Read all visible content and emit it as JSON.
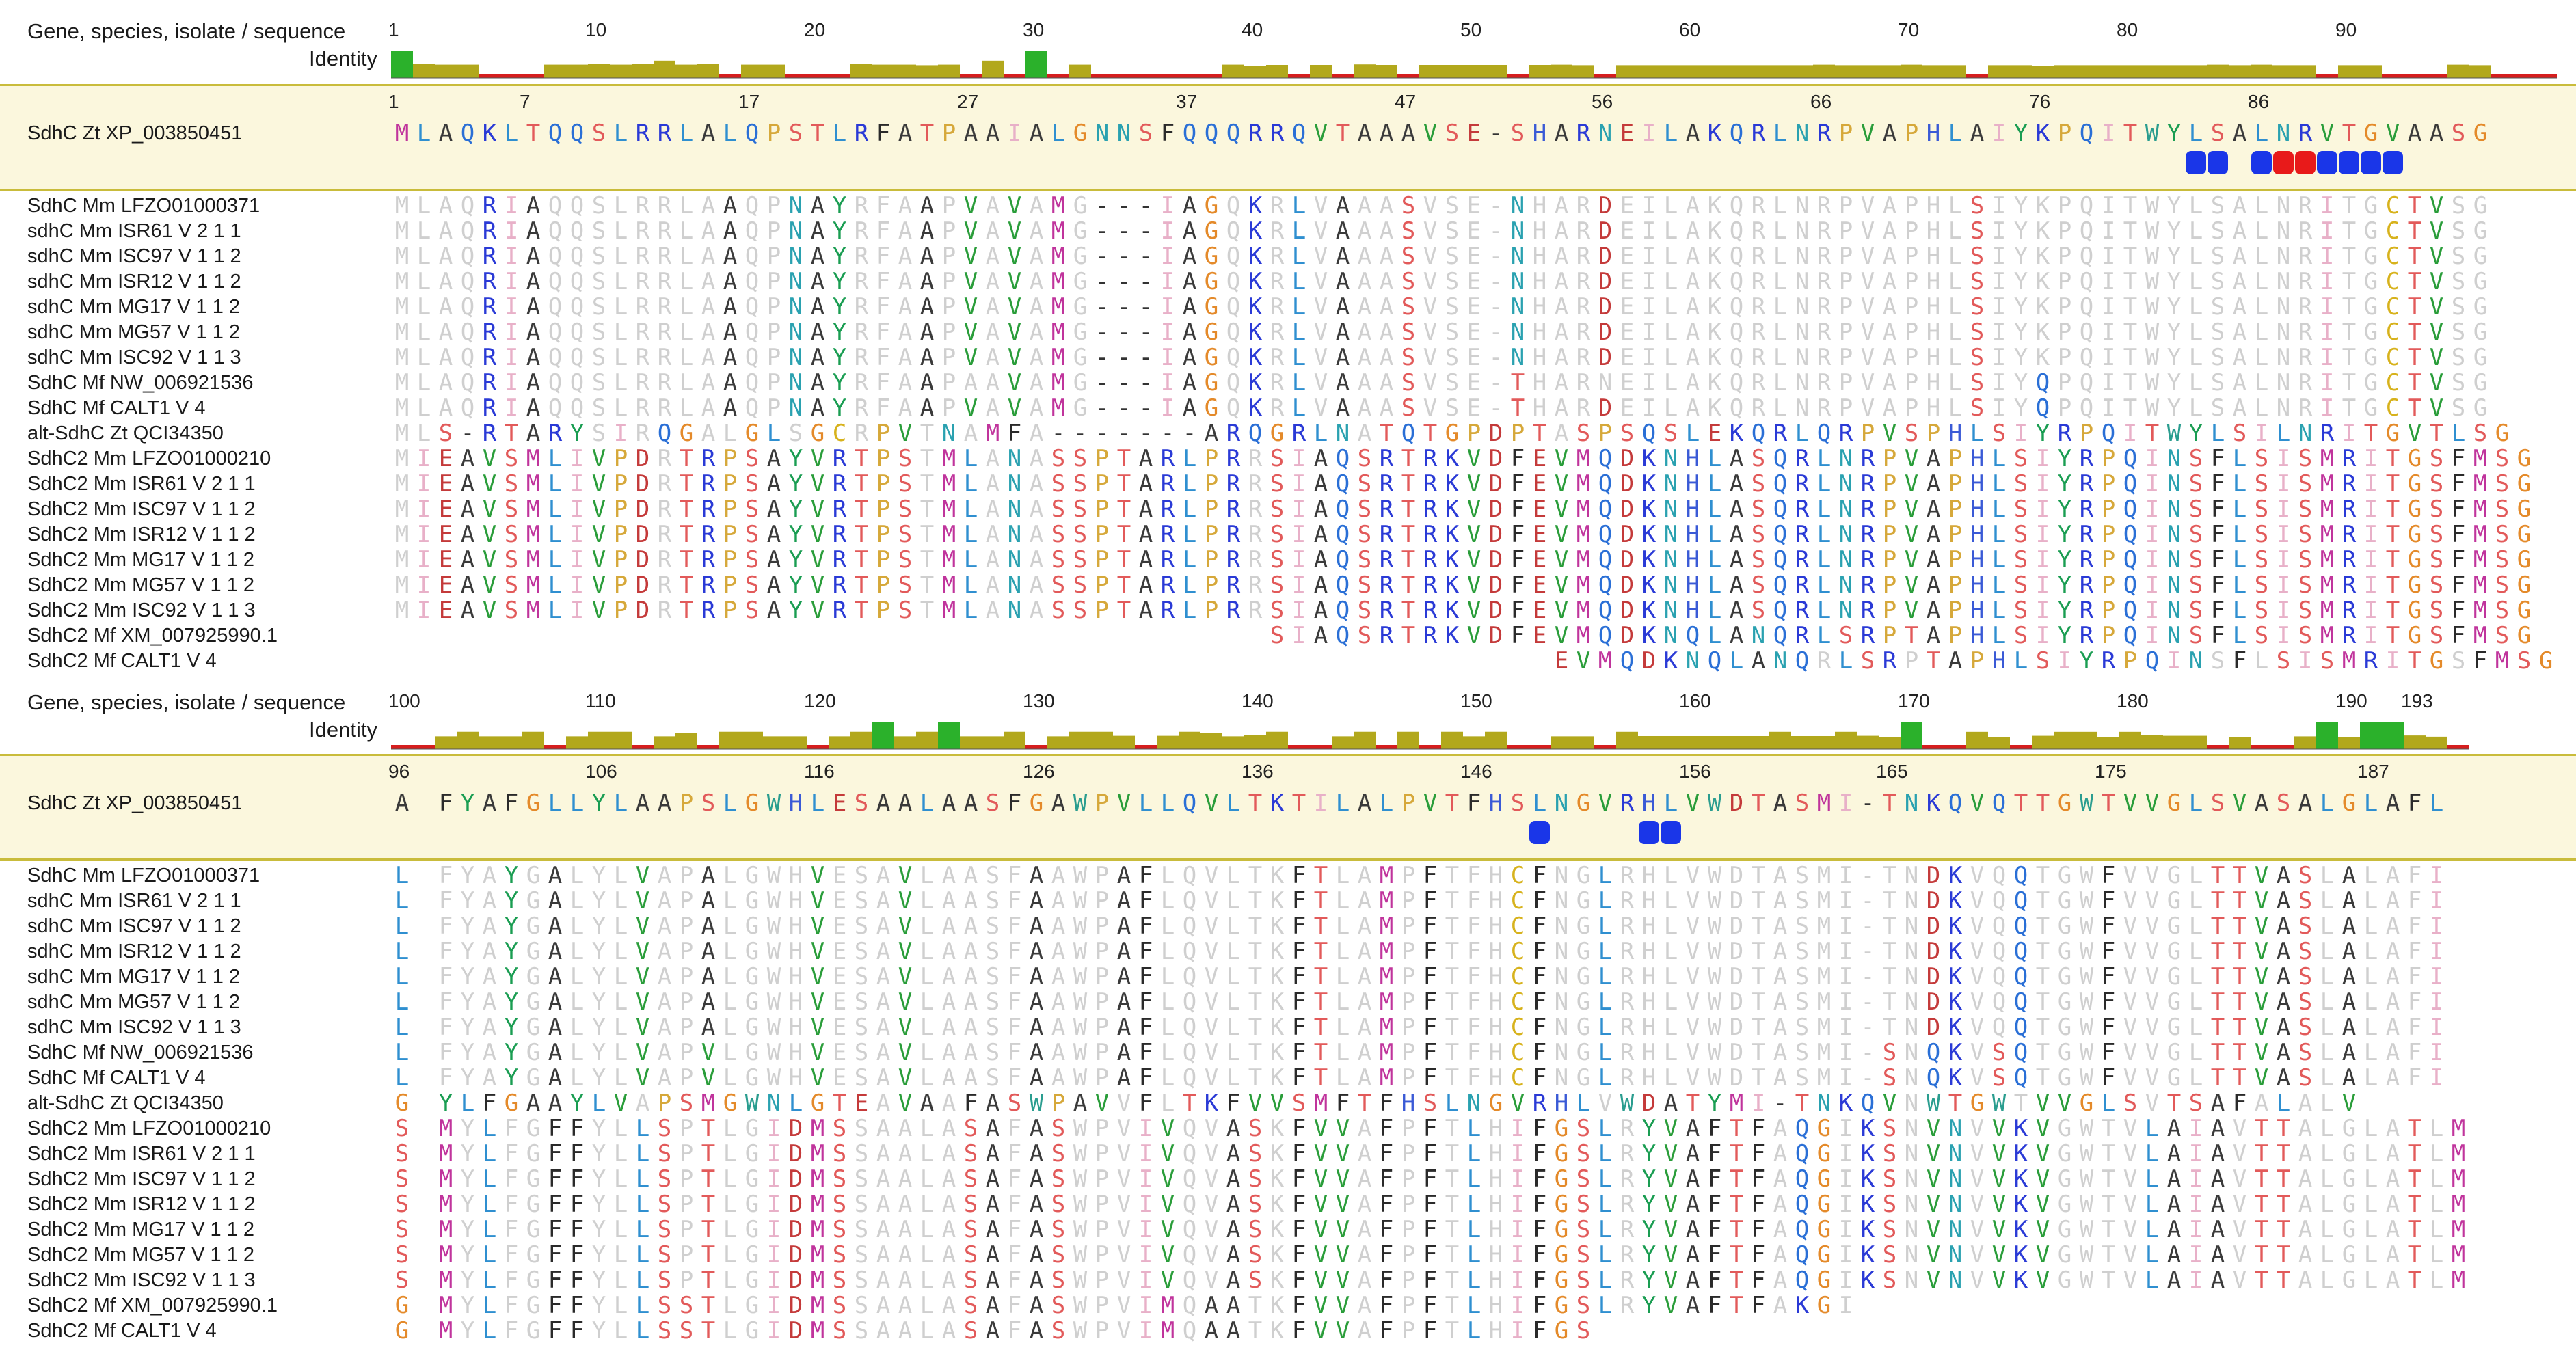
{
  "header_label_line1": "Gene, species, isolate / sequence",
  "header_label_line2": "Identity",
  "colors": {
    "identity_full": "#2bb12b",
    "identity_partial": "#b2a81c",
    "identity_low": "#d61e1e",
    "marker_blue": "#1a36e8",
    "marker_red": "#e81a1a",
    "ref_band": "#fbf7dd"
  },
  "blocks": [
    {
      "ruler_ticks": [
        "1",
        "10",
        "20",
        "30",
        "40",
        "50",
        "60",
        "70",
        "80",
        "90"
      ],
      "ref_ticks": [
        "1",
        "7",
        "17",
        "27",
        "37",
        "47",
        "56",
        "66",
        "76",
        "86"
      ],
      "reference": {
        "name": "SdhC Zt XP_003850451",
        "seq": "MLAQKLTQQSLRRLALQPSTLRFATPAAIALGNNSFQQQRRQVTAAAVSE-SHARNEILAKQRLNRPVAPHLAIYKPQITWYLSALNRVTGVAASG"
      },
      "rows": [
        {
          "name": "SdhC Mm LFZO01000371",
          "seq": "MLAQRIAQQSLRRLAAQPNAYRFAAPVAVAMG---IAGQKRLVAAASVSE-NHARDEILAKQRLNRPVAPHLSIYKPQITWYLSALNRITGCTVSG"
        },
        {
          "name": "sdhC Mm ISR61 V 2 1 1",
          "seq": "MLAQRIAQQSLRRLAAQPNAYRFAAPVAVAMG---IAGQKRLVAAASVSE-NHARDEILAKQRLNRPVAPHLSIYKPQITWYLSALNRITGCTVSG"
        },
        {
          "name": "sdhC Mm ISC97 V 1 1 2",
          "seq": "MLAQRIAQQSLRRLAAQPNAYRFAAPVAVAMG---IAGQKRLVAAASVSE-NHARDEILAKQRLNRPVAPHLSIYKPQITWYLSALNRITGCTVSG"
        },
        {
          "name": "sdhC Mm ISR12 V 1 1 2",
          "seq": "MLAQRIAQQSLRRLAAQPNAYRFAAPVAVAMG---IAGQKRLVAAASVSE-NHARDEILAKQRLNRPVAPHLSIYKPQITWYLSALNRITGCTVSG"
        },
        {
          "name": "sdhC Mm MG17 V 1 1 2",
          "seq": "MLAQRIAQQSLRRLAAQPNAYRFAAPVAVAMG---IAGQKRLVAAASVSE-NHARDEILAKQRLNRPVAPHLSIYKPQITWYLSALNRITGCTVSG"
        },
        {
          "name": "sdhC Mm MG57 V 1 1 2",
          "seq": "MLAQRIAQQSLRRLAAQPNAYRFAAPVAVAMG---IAGQKRLVAAASVSE-NHARDEILAKQRLNRPVAPHLSIYKPQITWYLSALNRITGCTVSG"
        },
        {
          "name": "sdhC Mm ISC92 V 1 1 3",
          "seq": "MLAQRIAQQSLRRLAAQPNAYRFAAPVAVAMG---IAGQKRLVAAASVSE-NHARDEILAKQRLNRPVAPHLSIYKPQITWYLSALNRITGCTVSG"
        },
        {
          "name": "SdhC Mf NW_006921536",
          "seq": "MLAQRIAQQSLRRLAAQPNAYRFAAPAAVAMG---IAGQKRLVAAASVSE-THARNEILAKQRLNRPVAPHLSIYQPQITWYLSALNRITGCTVSG"
        },
        {
          "name": "SdhC Mf CALT1 V 4",
          "seq": "MLAQRIAQQSLRRLAAQPNAYRFAAPVAVAMG---IAGQKRLVAAASVSE-THARDEILAKQRLNRPVAPHLSIYQPQITWYLSALNRITGCTVSG"
        },
        {
          "name": "alt-SdhC Zt QCI34350",
          "seq": "MLS-RTARYSIRQGALGLSGCRPVTNAMFA-------ARQGRLNATQTGPDPTASPSQSLEKQRLQRPVSPHLSIYRPQITWYLSILNRITGVTLSG"
        },
        {
          "name": "SdhC2 Mm LFZO01000210",
          "seq": "MIEAVSMLIVPDRTRPSAYVRTPSTMLANASSPTARLPRRSIAQSRTRKVDFEVMQDKNHLASQRLNRPVAPHLSIYRPQINSFLSISMRITGSFMSG"
        },
        {
          "name": "SdhC2 Mm ISR61 V 2 1 1",
          "seq": "MIEAVSMLIVPDRTRPSAYVRTPSTMLANASSPTARLPRRSIAQSRTRKVDFEVMQDKNHLASQRLNRPVAPHLSIYRPQINSFLSISMRITGSFMSG"
        },
        {
          "name": "SdhC2 Mm ISC97 V 1 1 2",
          "seq": "MIEAVSMLIVPDRTRPSAYVRTPSTMLANASSPTARLPRRSIAQSRTRKVDFEVMQDKNHLASQRLNRPVAPHLSIYRPQINSFLSISMRITGSFMSG"
        },
        {
          "name": "SdhC2 Mm ISR12 V 1 1 2",
          "seq": "MIEAVSMLIVPDRTRPSAYVRTPSTMLANASSPTARLPRRSIAQSRTRKVDFEVMQDKNHLASQRLNRPVAPHLSIYRPQINSFLSISMRITGSFMSG"
        },
        {
          "name": "SdhC2 Mm MG17 V 1 1 2",
          "seq": "MIEAVSMLIVPDRTRPSAYVRTPSTMLANASSPTARLPRRSIAQSRTRKVDFEVMQDKNHLASQRLNRPVAPHLSIYRPQINSFLSISMRITGSFMSG"
        },
        {
          "name": "SdhC2 Mm MG57 V 1 1 2",
          "seq": "MIEAVSMLIVPDRTRPSAYVRTPSTMLANASSPTARLPRRSIAQSRTRKVDFEVMQDKNHLASQRLNRPVAPHLSIYRPQINSFLSISMRITGSFMSG"
        },
        {
          "name": "SdhC2 Mm ISC92 V 1 1 3",
          "seq": "MIEAVSMLIVPDRTRPSAYVRTPSTMLANASSPTARLPRRSIAQSRTRKVDFEVMQDKNHLASQRLNRPVAPHLSIYRPQINSFLSISMRITGSFMSG"
        },
        {
          "name": "SdhC2 Mf XM_007925990.1",
          "seq": "                                        SIAQSRTRKVDFEVMQDKNQLANQRLSRPTAPHLSIYRPQINSFLSISMRITGSFMSG"
        },
        {
          "name": "SdhC2 Mf CALT1 V 4",
          "seq": "                                                     EVMQDKNQLANQRLSRPTAPHLSIYRPQINSFLSISMRITGSFMSG"
        }
      ]
    },
    {
      "ruler_ticks": [
        "100",
        "110",
        "120",
        "130",
        "140",
        "150",
        "160",
        "170",
        "180",
        "190",
        "193"
      ],
      "ref_ticks": [
        "96",
        "106",
        "116",
        "126",
        "136",
        "146",
        "156",
        "165",
        "175",
        "187"
      ],
      "reference": {
        "name": "SdhC Zt XP_003850451",
        "seq": "A FYAFGLLYLAAPSLGWHLESAALAASFGAWPVLLQVLTKTILALPVTFHSLNGVRHLVWDTASMI-TNKQVQTTGWTVVGLSVASALGLAFL"
      },
      "rows": [
        {
          "name": "SdhC Mm LFZO01000371",
          "seq": "L FYAYGALYLVAPALGWHVESAVLAASFAAWPAFLQVLTKFTLAMPFTFHCFNGLRHLVWDTASMI-TNDKVQQTGWFVVGLTTVASLALAFI"
        },
        {
          "name": "sdhC Mm ISR61 V 2 1 1",
          "seq": "L FYAYGALYLVAPALGWHVESAVLAASFAAWPAFLQVLTKFTLAMPFTFHCFNGLRHLVWDTASMI-TNDKVQQTGWFVVGLTTVASLALAFI"
        },
        {
          "name": "sdhC Mm ISC97 V 1 1 2",
          "seq": "L FYAYGALYLVAPALGWHVESAVLAASFAAWPAFLQVLTKFTLAMPFTFHCFNGLRHLVWDTASMI-TNDKVQQTGWFVVGLTTVASLALAFI"
        },
        {
          "name": "sdhC Mm ISR12 V 1 1 2",
          "seq": "L FYAYGALYLVAPALGWHVESAVLAASFAAWPAFLQVLTKFTLAMPFTFHCFNGLRHLVWDTASMI-TNDKVQQTGWFVVGLTTVASLALAFI"
        },
        {
          "name": "sdhC Mm MG17 V 1 1 2",
          "seq": "L FYAYGALYLVAPALGWHVESAVLAASFAAWPAFLQVLTKFTLAMPFTFHCFNGLRHLVWDTASMI-TNDKVQQTGWFVVGLTTVASLALAFI"
        },
        {
          "name": "sdhC Mm MG57 V 1 1 2",
          "seq": "L FYAYGALYLVAPALGWHVESAVLAASFAAWPAFLQVLTKFTLAMPFTFHCFNGLRHLVWDTASMI-TNDKVQQTGWFVVGLTTVASLALAFI"
        },
        {
          "name": "sdhC Mm ISC92 V 1 1 3",
          "seq": "L FYAYGALYLVAPALGWHVESAVLAASFAAWPAFLQVLTKFTLAMPFTFHCFNGLRHLVWDTASMI-TNDKVQQTGWFVVGLTTVASLALAFI"
        },
        {
          "name": "SdhC Mf NW_006921536",
          "seq": "L FYAYGALYLVAPVLGWHVESAVLAASFAAWPAFLQVLTKFTLAMPFTFHCFNGLRHLVWDTASMI-SNQKVSQTGWFVVGLTTVASLALAFI"
        },
        {
          "name": "SdhC Mf CALT1 V 4",
          "seq": "L FYAYGALYLVAPVLGWHVESAVLAASFAAWPAFLQVLTKFTLAMPFTFHCFNGLRHLVWDTASMI-SNQKVSQTGWFVVGLTTVASLALAFI"
        },
        {
          "name": "alt-SdhC Zt QCI34350",
          "seq": "G YLFGAAYLVAPSMGWNLGTEAVAAFASWPAVVFLTKFVVSMFTFHSLNGVRHLVWDATYMI-TNKQVNWTGWTVVGLSVTSAFALALV"
        },
        {
          "name": "SdhC2 Mm LFZO01000210",
          "seq": "S MYLFGFFYLLSPTLGIDMSSAALASAFASWPVIVQVASKFVVAFPFTLHIFGSLRYVAFTFAQGIKSNVNVVKVGWTVLAIAVTTALGLATLM"
        },
        {
          "name": "SdhC2 Mm ISR61 V 2 1 1",
          "seq": "S MYLFGFFYLLSPTLGIDMSSAALASAFASWPVIVQVASKFVVAFPFTLHIFGSLRYVAFTFAQGIKSNVNVVKVGWTVLAIAVTTALGLATLM"
        },
        {
          "name": "SdhC2 Mm ISC97 V 1 1 2",
          "seq": "S MYLFGFFYLLSPTLGIDMSSAALASAFASWPVIVQVASKFVVAFPFTLHIFGSLRYVAFTFAQGIKSNVNVVKVGWTVLAIAVTTALGLATLM"
        },
        {
          "name": "SdhC2 Mm ISR12 V 1 1 2",
          "seq": "S MYLFGFFYLLSPTLGIDMSSAALASAFASWPVIVQVASKFVVAFPFTLHIFGSLRYVAFTFAQGIKSNVNVVKVGWTVLAIAVTTALGLATLM"
        },
        {
          "name": "SdhC2 Mm MG17 V 1 1 2",
          "seq": "S MYLFGFFYLLSPTLGIDMSSAALASAFASWPVIVQVASKFVVAFPFTLHIFGSLRYVAFTFAQGIKSNVNVVKVGWTVLAIAVTTALGLATLM"
        },
        {
          "name": "SdhC2 Mm MG57 V 1 1 2",
          "seq": "S MYLFGFFYLLSPTLGIDMSSAALASAFASWPVIVQVASKFVVAFPFTLHIFGSLRYVAFTFAQGIKSNVNVVKVGWTVLAIAVTTALGLATLM"
        },
        {
          "name": "SdhC2 Mm ISC92 V 1 1 3",
          "seq": "S MYLFGFFYLLSPTLGIDMSSAALASAFASWPVIVQVASKFVVAFPFTLHIFGSLRYVAFTFAQGIKSNVNVVKVGWTVLAIAVTTALGLATLM"
        },
        {
          "name": "SdhC2 Mf XM_007925990.1",
          "seq": "G MYLFGFFYLLSSTLGIDMSSAALASAFASWPVIMQAATKFVVAFPFTLHIFGSLRYVAFTFAKGI"
        },
        {
          "name": "SdhC2 Mf CALT1 V 4",
          "seq": "G MYLFGFFYLLSSTLGIDMSSAALASAFASWPVIMQAATKFVVAFPFTLHIFGS"
        }
      ]
    }
  ]
}
